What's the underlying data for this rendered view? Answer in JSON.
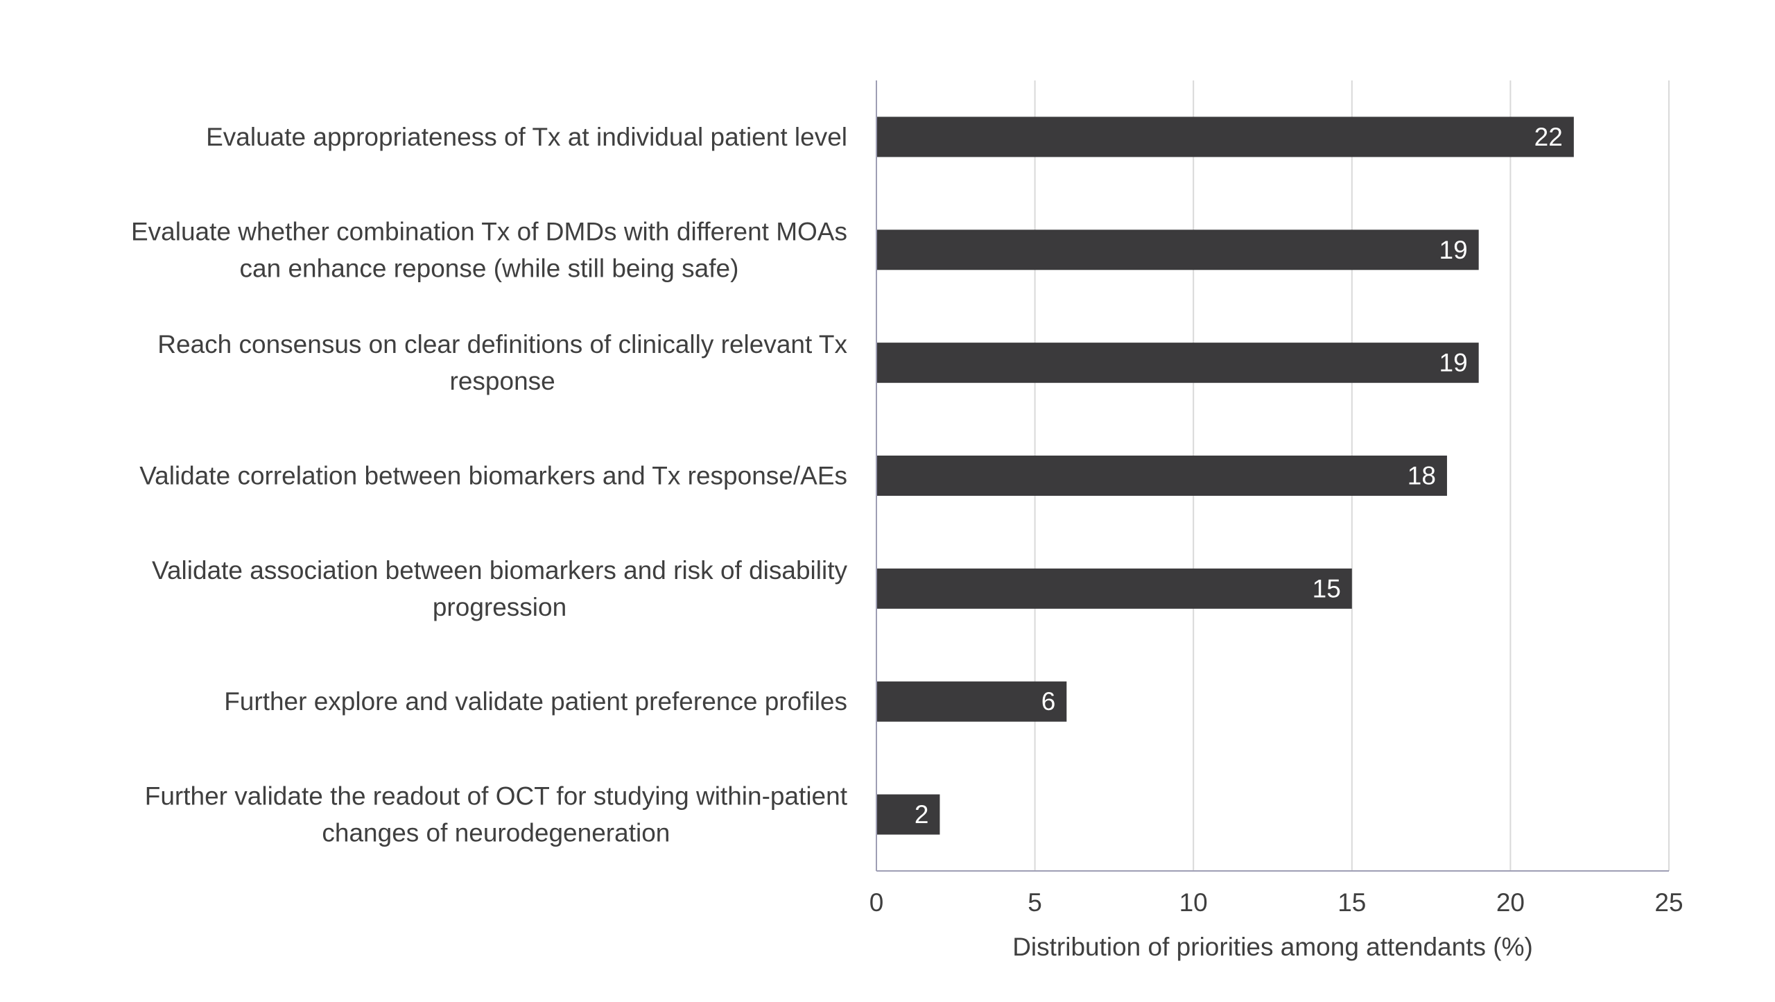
{
  "chart_data": {
    "type": "bar",
    "orientation": "horizontal",
    "categories": [
      [
        "Evaluate appropriateness of Tx at individual patient level"
      ],
      [
        "Evaluate whether combination Tx of DMDs with different MOAs",
        "can enhance reponse (while still being safe)"
      ],
      [
        "Reach consensus on clear definitions of clinically relevant Tx",
        "response"
      ],
      [
        "Validate correlation between biomarkers and Tx response/AEs"
      ],
      [
        "Validate association between biomarkers and risk of disability",
        "progression"
      ],
      [
        "Further explore and validate patient preference profiles"
      ],
      [
        "Further validate the readout of OCT for studying within-patient",
        "changes of neurodegeneration"
      ]
    ],
    "values": [
      22,
      19,
      19,
      18,
      15,
      6,
      2
    ],
    "xlabel": "Distribution of priorities among attendants (%)",
    "ylabel": "",
    "xlim": [
      0,
      25
    ],
    "xticks": [
      0,
      5,
      10,
      15,
      20,
      25
    ],
    "grid": "vertical",
    "legend": "none",
    "data_labels": "inside-end",
    "colors": {
      "bar": "#3b3a3c",
      "label_inside": "#ffffff",
      "text": "#3f3f3f",
      "grid": "#d9d9d9",
      "axis": "#9e9eb4"
    }
  }
}
